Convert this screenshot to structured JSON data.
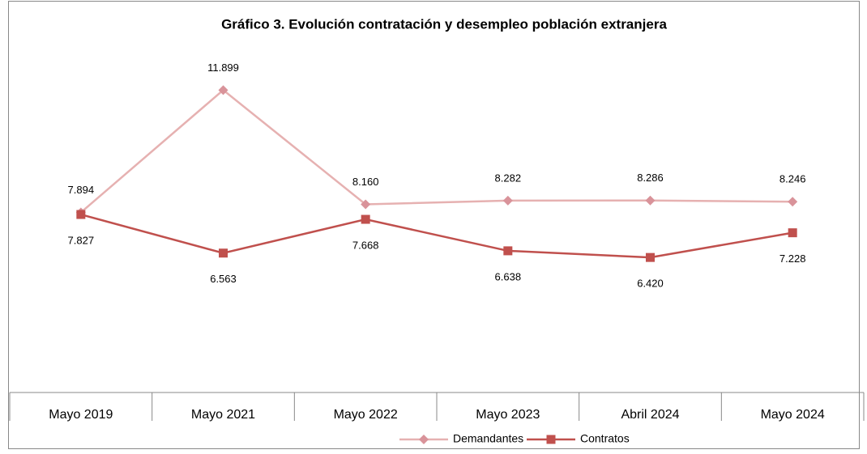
{
  "chart_data": {
    "type": "line",
    "title": "Gráfico 3. Evolución contratación y desempleo población extranjera",
    "categories": [
      "Mayo 2019",
      "Mayo 2021",
      "Mayo 2022",
      "Mayo 2023",
      "Abril 2024",
      "Mayo 2024"
    ],
    "ylim": [
      2000,
      14000
    ],
    "series": [
      {
        "name": "Demandantes",
        "color": "#e6b1b1",
        "marker_color": "#d9939a",
        "marker": "diamond",
        "values": [
          7894,
          11899,
          8160,
          8282,
          8286,
          8246
        ],
        "value_labels": [
          "7.894",
          "11.899",
          "8.160",
          "8.282",
          "8.286",
          "8.246"
        ]
      },
      {
        "name": "Contratos",
        "color": "#c0504d",
        "marker_color": "#c0504d",
        "marker": "square",
        "values": [
          7827,
          6563,
          7668,
          6638,
          6420,
          7228
        ],
        "value_labels": [
          "7.827",
          "6.563",
          "7.668",
          "6.638",
          "6.420",
          "7.228"
        ]
      }
    ]
  }
}
